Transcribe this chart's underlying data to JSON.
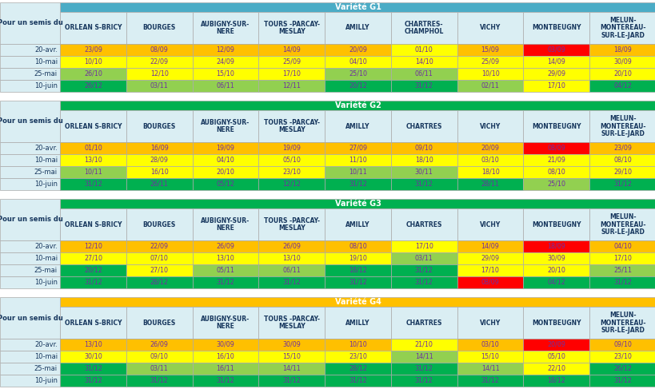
{
  "tables": [
    {
      "title": "Variété G1",
      "title_bg": "#4BACC6",
      "col_header_bg": "#B8CCE4",
      "row_label_col": "Pour un semis du",
      "columns": [
        "ORLEAN S-BRICY",
        "BOURGES",
        "AUBIGNY-SUR-\nNERE",
        "TOURS -PARCAY-\nMESLAY",
        "AMILLY",
        "CHARTRES-\nCHAMPHOL",
        "VICHY",
        "MONTBEUGNY",
        "MELUN-\nMONTEREAU-\nSUR-LE-JARD"
      ],
      "rows": [
        {
          "label": "20-avr.",
          "values": [
            "23/09",
            "08/09",
            "12/09",
            "14/09",
            "20/09",
            "01/10",
            "15/09",
            "03/09",
            "18/09"
          ],
          "colors": [
            "#FFC000",
            "#FFC000",
            "#FFC000",
            "#FFC000",
            "#FFC000",
            "#FFFF00",
            "#FFC000",
            "#FF0000",
            "#FFC000"
          ]
        },
        {
          "label": "10-mai",
          "values": [
            "10/10",
            "22/09",
            "24/09",
            "25/09",
            "04/10",
            "14/10",
            "25/09",
            "14/09",
            "30/09"
          ],
          "colors": [
            "#FFFF00",
            "#FFFF00",
            "#FFFF00",
            "#FFFF00",
            "#FFFF00",
            "#FFFF00",
            "#FFFF00",
            "#FFFF00",
            "#FFFF00"
          ]
        },
        {
          "label": "25-mai",
          "values": [
            "26/10",
            "12/10",
            "15/10",
            "17/10",
            "25/10",
            "06/11",
            "10/10",
            "29/09",
            "20/10"
          ],
          "colors": [
            "#92D050",
            "#FFFF00",
            "#FFFF00",
            "#FFFF00",
            "#92D050",
            "#92D050",
            "#FFFF00",
            "#FFFF00",
            "#FFFF00"
          ]
        },
        {
          "label": "10-juin",
          "values": [
            "26/12",
            "03/11",
            "06/11",
            "12/11",
            "20/12",
            "31/12",
            "02/11",
            "17/10",
            "04/12"
          ],
          "colors": [
            "#00B050",
            "#92D050",
            "#92D050",
            "#92D050",
            "#00B050",
            "#00B050",
            "#92D050",
            "#FFFF00",
            "#00B050"
          ]
        }
      ]
    },
    {
      "title": "Variété G2",
      "title_bg": "#00B050",
      "col_header_bg": "#B8CCE4",
      "row_label_col": "Pour un semis du",
      "columns": [
        "ORLEAN S-BRICY",
        "BOURGES",
        "AUBIGNY-SUR-\nNERE",
        "TOURS -PARCAY-\nMESLAY",
        "AMILLY",
        "CHARTRES",
        "VICHY",
        "MONTBEUGNY",
        "MELUN-\nMONTEREAU-\nSUR-LE-JARD"
      ],
      "rows": [
        {
          "label": "20-avr.",
          "values": [
            "01/10",
            "16/09",
            "19/09",
            "19/09",
            "27/09",
            "09/10",
            "20/09",
            "08/09",
            "23/09"
          ],
          "colors": [
            "#FFC000",
            "#FFC000",
            "#FFC000",
            "#FFC000",
            "#FFC000",
            "#FFC000",
            "#FFC000",
            "#FF0000",
            "#FFC000"
          ]
        },
        {
          "label": "10-mai",
          "values": [
            "13/10",
            "28/09",
            "04/10",
            "05/10",
            "11/10",
            "18/10",
            "03/10",
            "21/09",
            "08/10"
          ],
          "colors": [
            "#FFFF00",
            "#FFFF00",
            "#FFFF00",
            "#FFFF00",
            "#FFFF00",
            "#FFFF00",
            "#FFFF00",
            "#FFFF00",
            "#FFFF00"
          ]
        },
        {
          "label": "25-mai",
          "values": [
            "10/11",
            "16/10",
            "20/10",
            "23/10",
            "10/11",
            "30/11",
            "18/10",
            "08/10",
            "29/10"
          ],
          "colors": [
            "#92D050",
            "#FFFF00",
            "#FFFF00",
            "#FFFF00",
            "#92D050",
            "#92D050",
            "#FFFF00",
            "#FFFF00",
            "#FFFF00"
          ]
        },
        {
          "label": "10-juin",
          "values": [
            "31/12",
            "26/11",
            "05/12",
            "12/12",
            "31/12",
            "31/12",
            "28/11",
            "25/10",
            "31/12"
          ],
          "colors": [
            "#00B050",
            "#00B050",
            "#00B050",
            "#00B050",
            "#00B050",
            "#00B050",
            "#00B050",
            "#92D050",
            "#00B050"
          ]
        }
      ]
    },
    {
      "title": "Variété G3",
      "title_bg": "#00B050",
      "col_header_bg": "#B8CCE4",
      "row_label_col": "Pour un semis du",
      "columns": [
        "ORLEAN S-BRICY",
        "BOURGES",
        "AUBIGNY-SUR-\nNERE",
        "TOURS -PARCAY-\nMESLAY",
        "AMILLY",
        "CHARTRES",
        "VICHY",
        "MONTBEUGNY",
        "MELUN-\nMONTEREAU-\nSUR-LE-JARD"
      ],
      "rows": [
        {
          "label": "20-avr.",
          "values": [
            "12/10",
            "22/09",
            "26/09",
            "26/09",
            "08/10",
            "17/10",
            "14/09",
            "18/09",
            "04/10"
          ],
          "colors": [
            "#FFC000",
            "#FFC000",
            "#FFC000",
            "#FFC000",
            "#FFC000",
            "#FFFF00",
            "#FFC000",
            "#FF0000",
            "#FFC000"
          ]
        },
        {
          "label": "10-mai",
          "values": [
            "27/10",
            "07/10",
            "13/10",
            "13/10",
            "19/10",
            "03/11",
            "29/09",
            "30/09",
            "17/10"
          ],
          "colors": [
            "#FFFF00",
            "#FFFF00",
            "#FFFF00",
            "#FFFF00",
            "#FFFF00",
            "#92D050",
            "#FFFF00",
            "#FFFF00",
            "#FFFF00"
          ]
        },
        {
          "label": "25-mai",
          "values": [
            "20/12",
            "27/10",
            "05/11",
            "06/11",
            "18/12",
            "31/12",
            "17/10",
            "20/10",
            "25/11"
          ],
          "colors": [
            "#00B050",
            "#FFFF00",
            "#92D050",
            "#92D050",
            "#00B050",
            "#00B050",
            "#FFFF00",
            "#FFFF00",
            "#92D050"
          ]
        },
        {
          "label": "10-juin",
          "values": [
            "31/12",
            "28/12",
            "31/12",
            "31/12",
            "31/12",
            "31/12",
            "08/09",
            "04/12",
            "31/12"
          ],
          "colors": [
            "#00B050",
            "#00B050",
            "#00B050",
            "#00B050",
            "#00B050",
            "#00B050",
            "#FF0000",
            "#00B050",
            "#00B050"
          ]
        }
      ]
    },
    {
      "title": "Variété G4",
      "title_bg": "#FFC000",
      "col_header_bg": "#B8CCE4",
      "row_label_col": "Pour un semis du",
      "columns": [
        "ORLEAN S-BRICY",
        "BOURGES",
        "AUBIGNY-SUR-\nNERE",
        "TOURS -PARCAY-\nMESLAY",
        "AMILLY",
        "CHARTRES",
        "VICHY",
        "MONTBEUGNY",
        "MELUN-\nMONTEREAU-\nSUR-LE-JARD"
      ],
      "rows": [
        {
          "label": "20-avr.",
          "values": [
            "13/10",
            "26/09",
            "30/09",
            "30/09",
            "10/10",
            "21/10",
            "03/10",
            "20/09",
            "09/10"
          ],
          "colors": [
            "#FFC000",
            "#FFC000",
            "#FFC000",
            "#FFC000",
            "#FFC000",
            "#FFFF00",
            "#FFC000",
            "#FF0000",
            "#FFC000"
          ]
        },
        {
          "label": "10-mai",
          "values": [
            "30/10",
            "09/10",
            "16/10",
            "15/10",
            "23/10",
            "14/11",
            "15/10",
            "05/10",
            "23/10"
          ],
          "colors": [
            "#FFFF00",
            "#FFFF00",
            "#FFFF00",
            "#FFFF00",
            "#FFFF00",
            "#92D050",
            "#FFFF00",
            "#FFFF00",
            "#FFFF00"
          ]
        },
        {
          "label": "25-mai",
          "values": [
            "31/12",
            "03/11",
            "16/11",
            "14/11",
            "28/12",
            "31/12",
            "14/11",
            "22/10",
            "26/12"
          ],
          "colors": [
            "#00B050",
            "#92D050",
            "#92D050",
            "#92D050",
            "#00B050",
            "#00B050",
            "#92D050",
            "#FFFF00",
            "#00B050"
          ]
        },
        {
          "label": "10-juin",
          "values": [
            "31/12",
            "31/12",
            "31/12",
            "31/12",
            "31/12",
            "31/12",
            "31/12",
            "18/12",
            "31/12"
          ],
          "colors": [
            "#00B050",
            "#00B050",
            "#00B050",
            "#00B050",
            "#00B050",
            "#00B050",
            "#00B050",
            "#00B050",
            "#00B050"
          ]
        }
      ]
    }
  ],
  "label_col_bg": "#DAEEF3",
  "border_color": "#AAAAAA",
  "text_color_data": "#7030A0",
  "text_color_header": "#17375E",
  "text_color_label": "#17375E",
  "text_color_title": "#FFFFFF",
  "font_size_data": 5.8,
  "font_size_header": 5.5,
  "font_size_title": 7.0,
  "font_size_label": 6.0
}
